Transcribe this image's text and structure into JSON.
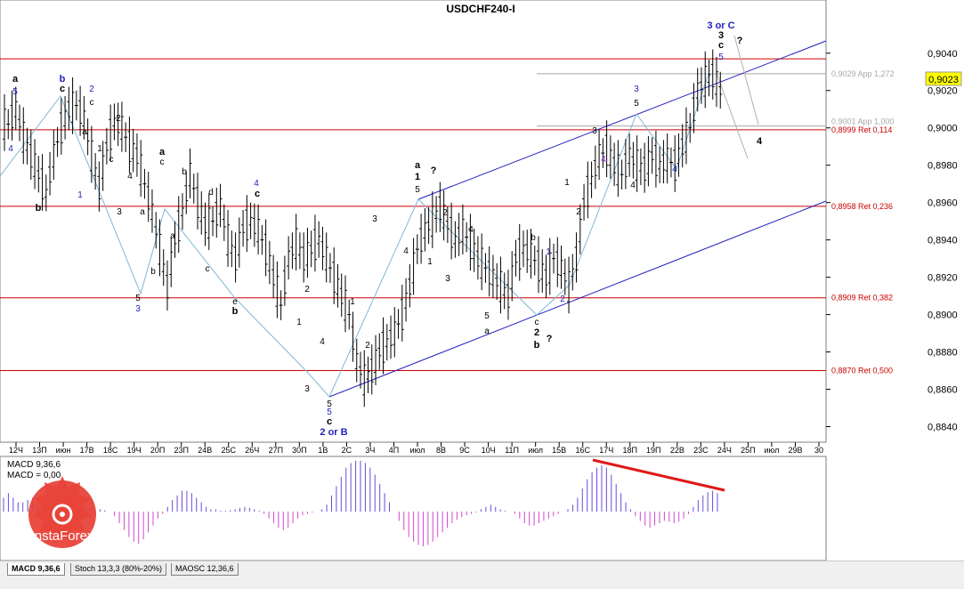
{
  "chart_title": "USDCHF240-I",
  "chart_data": {
    "type": "candlestick",
    "symbol": "USDCHF240-I",
    "ylim": [
      0.8835,
      0.9058
    ],
    "current_price": "0,9023",
    "price_ticks": [
      "0,9040",
      "0,9020",
      "0,9000",
      "0,8980",
      "0,8960",
      "0,8940",
      "0,8920",
      "0,8900",
      "0,8880",
      "0,8860",
      "0,8840"
    ],
    "date_ticks": [
      "12Ч",
      "13П",
      "июн",
      "17В",
      "18С",
      "19Ч",
      "20П",
      "23П",
      "24В",
      "25С",
      "26Ч",
      "27П",
      "30П",
      "1В",
      "2С",
      "3Ч",
      "4П",
      "июл",
      "8В",
      "9С",
      "10Ч",
      "11П",
      "июл",
      "15В",
      "16С",
      "17Ч",
      "18П",
      "19П",
      "22В",
      "23С",
      "24Ч",
      "25П",
      "июл",
      "29В",
      "30"
    ],
    "fib_levels": [
      {
        "label": "0,9029 App 1,272",
        "value": 0.9029,
        "color": "#a8a8a8"
      },
      {
        "label": "0,9001 App 1,000",
        "value": 0.9001,
        "color": "#a8a8a8"
      },
      {
        "label": "0,8999 Ret 0,114",
        "value": 0.8999,
        "color": "#cc0000"
      },
      {
        "label": "0,8958 Ret 0,236",
        "value": 0.8958,
        "color": "#cc0000"
      },
      {
        "label": "0,8909 Ret 0,382",
        "value": 0.8909,
        "color": "#cc0000"
      },
      {
        "label": "0,8870 Ret 0,500",
        "value": 0.887,
        "color": "#cc0000"
      }
    ],
    "red_level_top": 0.9037,
    "price_path": [
      0.9002,
      0.901,
      0.8995,
      0.8985,
      0.8975,
      0.8965,
      0.8985,
      0.9,
      0.901,
      0.9012,
      0.9005,
      0.8985,
      0.8968,
      0.899,
      0.9003,
      0.9,
      0.899,
      0.8985,
      0.897,
      0.8955,
      0.8935,
      0.8915,
      0.894,
      0.8955,
      0.8975,
      0.896,
      0.8948,
      0.895,
      0.8958,
      0.894,
      0.893,
      0.8946,
      0.895,
      0.8945,
      0.8935,
      0.892,
      0.8905,
      0.893,
      0.8938,
      0.893,
      0.8935,
      0.894,
      0.893,
      0.892,
      0.891,
      0.89,
      0.8875,
      0.8865,
      0.887,
      0.888,
      0.8885,
      0.889,
      0.89,
      0.8915,
      0.8935,
      0.8945,
      0.895,
      0.8957,
      0.8948,
      0.894,
      0.8945,
      0.8938,
      0.893,
      0.8925,
      0.892,
      0.8915,
      0.891,
      0.893,
      0.8935,
      0.8932,
      0.8926,
      0.892,
      0.893,
      0.8925,
      0.8915,
      0.893,
      0.896,
      0.8972,
      0.8985,
      0.8988,
      0.898,
      0.8975,
      0.8985,
      0.898,
      0.8978,
      0.8985,
      0.898,
      0.8983,
      0.898,
      0.899,
      0.9,
      0.902,
      0.9025,
      0.9028,
      0.902
    ],
    "wave_labels": [
      {
        "t": "a",
        "x": 17,
        "y": 92,
        "c": "#000000",
        "b": true
      },
      {
        "t": "5",
        "x": 17,
        "y": 106,
        "c": "#1f1fbf"
      },
      {
        "t": "b",
        "x": 70,
        "y": 92,
        "c": "#1f1fbf",
        "b": true
      },
      {
        "t": "c",
        "x": 70,
        "y": 103,
        "c": "#000000",
        "b": true
      },
      {
        "t": "2",
        "x": 103,
        "y": 103,
        "c": "#1f1fbf"
      },
      {
        "t": "c",
        "x": 103,
        "y": 118,
        "c": "#000000"
      },
      {
        "t": "4",
        "x": 12,
        "y": 170,
        "c": "#1f1fbf"
      },
      {
        "t": "b",
        "x": 43,
        "y": 237,
        "c": "#000000",
        "b": true
      },
      {
        "t": "a",
        "x": 95,
        "y": 151,
        "c": "#000000"
      },
      {
        "t": "1",
        "x": 90,
        "y": 222,
        "c": "#1f1fbf"
      },
      {
        "t": "1",
        "x": 112,
        "y": 170,
        "c": "#000000"
      },
      {
        "t": "2",
        "x": 133,
        "y": 136,
        "c": "#000000"
      },
      {
        "t": "c",
        "x": 125,
        "y": 182,
        "c": "#000000"
      },
      {
        "t": "4",
        "x": 146,
        "y": 201,
        "c": "#000000"
      },
      {
        "t": "3",
        "x": 134,
        "y": 241,
        "c": "#000000"
      },
      {
        "t": "a",
        "x": 160,
        "y": 241,
        "c": "#000000"
      },
      {
        "t": "b",
        "x": 172,
        "y": 308,
        "c": "#000000"
      },
      {
        "t": "5",
        "x": 155,
        "y": 338,
        "c": "#000000"
      },
      {
        "t": "3",
        "x": 155,
        "y": 350,
        "c": "#1f1fbf"
      },
      {
        "t": "a",
        "x": 182,
        "y": 174,
        "c": "#000000",
        "b": true
      },
      {
        "t": "c",
        "x": 182,
        "y": 185,
        "c": "#000000"
      },
      {
        "t": "b",
        "x": 207,
        "y": 196,
        "c": "#000000"
      },
      {
        "t": "a",
        "x": 194,
        "y": 268,
        "c": "#000000"
      },
      {
        "t": "d",
        "x": 237,
        "y": 219,
        "c": "#000000"
      },
      {
        "t": "c",
        "x": 233,
        "y": 305,
        "c": "#000000"
      },
      {
        "t": "4",
        "x": 288,
        "y": 209,
        "c": "#1f1fbf"
      },
      {
        "t": "c",
        "x": 289,
        "y": 221,
        "c": "#000000",
        "b": true
      },
      {
        "t": "e",
        "x": 264,
        "y": 342,
        "c": "#000000"
      },
      {
        "t": "b",
        "x": 264,
        "y": 353,
        "c": "#000000",
        "b": true
      },
      {
        "t": "2",
        "x": 345,
        "y": 328,
        "c": "#000000"
      },
      {
        "t": "1",
        "x": 336,
        "y": 365,
        "c": "#000000"
      },
      {
        "t": "4",
        "x": 362,
        "y": 387,
        "c": "#000000"
      },
      {
        "t": "3",
        "x": 345,
        "y": 440,
        "c": "#000000"
      },
      {
        "t": "5",
        "x": 370,
        "y": 457,
        "c": "#000000"
      },
      {
        "t": "5",
        "x": 370,
        "y": 466,
        "c": "#1f1fbf"
      },
      {
        "t": "c",
        "x": 370,
        "y": 477,
        "c": "#000000",
        "b": true
      },
      {
        "t": "2 or B",
        "x": 375,
        "y": 489,
        "c": "#1f1fbf",
        "b": true
      },
      {
        "t": "1",
        "x": 396,
        "y": 342,
        "c": "#000000"
      },
      {
        "t": "2",
        "x": 413,
        "y": 391,
        "c": "#000000"
      },
      {
        "t": "3",
        "x": 421,
        "y": 249,
        "c": "#000000"
      },
      {
        "t": "4",
        "x": 456,
        "y": 285,
        "c": "#000000"
      },
      {
        "t": "a",
        "x": 469,
        "y": 189,
        "c": "#000000",
        "b": true
      },
      {
        "t": "1",
        "x": 469,
        "y": 202,
        "c": "#000000",
        "b": true
      },
      {
        "t": "5",
        "x": 469,
        "y": 216,
        "c": "#000000"
      },
      {
        "t": "?",
        "x": 487,
        "y": 195,
        "c": "#000000",
        "b": true
      },
      {
        "t": "2",
        "x": 500,
        "y": 242,
        "c": "#000000"
      },
      {
        "t": "1",
        "x": 483,
        "y": 297,
        "c": "#000000"
      },
      {
        "t": "3",
        "x": 503,
        "y": 316,
        "c": "#000000"
      },
      {
        "t": "4",
        "x": 529,
        "y": 261,
        "c": "#000000"
      },
      {
        "t": "5",
        "x": 547,
        "y": 358,
        "c": "#000000"
      },
      {
        "t": "a",
        "x": 547,
        "y": 375,
        "c": "#000000"
      },
      {
        "t": "b",
        "x": 599,
        "y": 270,
        "c": "#000000"
      },
      {
        "t": "1",
        "x": 616,
        "y": 286,
        "c": "#1f1fbf"
      },
      {
        "t": "c",
        "x": 603,
        "y": 365,
        "c": "#000000"
      },
      {
        "t": "2",
        "x": 603,
        "y": 377,
        "c": "#000000",
        "b": true
      },
      {
        "t": "b",
        "x": 603,
        "y": 391,
        "c": "#000000",
        "b": true
      },
      {
        "t": "?",
        "x": 617,
        "y": 384,
        "c": "#000000",
        "b": true
      },
      {
        "t": "2",
        "x": 632,
        "y": 339,
        "c": "#1f1fbf"
      },
      {
        "t": "1",
        "x": 637,
        "y": 208,
        "c": "#000000"
      },
      {
        "t": "2",
        "x": 650,
        "y": 241,
        "c": "#000000"
      },
      {
        "t": "3",
        "x": 668,
        "y": 150,
        "c": "#000000"
      },
      {
        "t": "4",
        "x": 678,
        "y": 182,
        "c": "#8a2be2"
      },
      {
        "t": "4",
        "x": 711,
        "y": 211,
        "c": "#000000"
      },
      {
        "t": "3",
        "x": 715,
        "y": 103,
        "c": "#1f1fbf"
      },
      {
        "t": "5",
        "x": 715,
        "y": 119,
        "c": "#000000"
      },
      {
        "t": "4",
        "x": 758,
        "y": 193,
        "c": "#1f1fbf"
      },
      {
        "t": "3 or C",
        "x": 810,
        "y": 32,
        "c": "#1f1fbf",
        "b": true
      },
      {
        "t": "3",
        "x": 810,
        "y": 43,
        "c": "#000000",
        "b": true
      },
      {
        "t": "c",
        "x": 810,
        "y": 54,
        "c": "#000000",
        "b": true
      },
      {
        "t": "5",
        "x": 810,
        "y": 67,
        "c": "#1f1fbf"
      },
      {
        "t": "?",
        "x": 831,
        "y": 49,
        "c": "#000000",
        "b": true
      },
      {
        "t": "4",
        "x": 853,
        "y": 162,
        "c": "#000000",
        "b": true
      }
    ],
    "indicator": {
      "name": "MACD",
      "params": "9,36,6",
      "label_line1": "MACD 9,36,6",
      "label_line2": "MACD = 0,00",
      "zero_line_label": "",
      "histogram": [
        0.3,
        0.4,
        0.3,
        0.2,
        0.2,
        0.25,
        0.3,
        0.2,
        0.15,
        0.1,
        0.1,
        0.15,
        0.2,
        0.2,
        0.15,
        0.12,
        0.1,
        0.1,
        0.08,
        0.05,
        0.05,
        0.03,
        0,
        -0.1,
        -0.25,
        -0.4,
        -0.55,
        -0.65,
        -0.7,
        -0.6,
        -0.45,
        -0.3,
        -0.15,
        -0.05,
        0.1,
        0.25,
        0.35,
        0.45,
        0.45,
        0.4,
        0.3,
        0.2,
        0.1,
        0.05,
        0.05,
        0.02,
        0.02,
        0.03,
        0.05,
        0.08,
        0.1,
        0.08,
        0.05,
        0.02,
        -0.05,
        -0.15,
        -0.25,
        -0.35,
        -0.4,
        -0.35,
        -0.25,
        -0.15,
        -0.08,
        -0.05,
        -0.02,
        0,
        0.05,
        0.15,
        0.35,
        0.55,
        0.75,
        0.95,
        1.05,
        1.1,
        1.1,
        1.05,
        0.95,
        0.8,
        0.6,
        0.4,
        0.2,
        0,
        -0.2,
        -0.4,
        -0.55,
        -0.65,
        -0.72,
        -0.75,
        -0.72,
        -0.65,
        -0.55,
        -0.45,
        -0.35,
        -0.25,
        -0.18,
        -0.12,
        -0.08,
        -0.05,
        -0.02,
        0.05,
        0.1,
        0.15,
        0.1,
        0.05,
        0.02,
        0,
        -0.05,
        -0.15,
        -0.25,
        -0.3,
        -0.3,
        -0.25,
        -0.2,
        -0.15,
        -0.1,
        -0.05,
        0,
        0.05,
        0.15,
        0.3,
        0.5,
        0.7,
        0.85,
        0.95,
        1.0,
        0.95,
        0.8,
        0.6,
        0.4,
        0.2,
        0.05,
        -0.1,
        -0.2,
        -0.3,
        -0.35,
        -0.3,
        -0.25,
        -0.2,
        -0.22,
        -0.25,
        -0.22,
        -0.15,
        -0.05,
        0.1,
        0.25,
        0.35,
        0.42,
        0.45,
        0.4
      ]
    },
    "brand": "InstaForex",
    "tabs": [
      "MACD 9,36,6",
      "Stoch 13,3,3 (80%-20%)",
      "MAOSC 12,36,6"
    ]
  }
}
